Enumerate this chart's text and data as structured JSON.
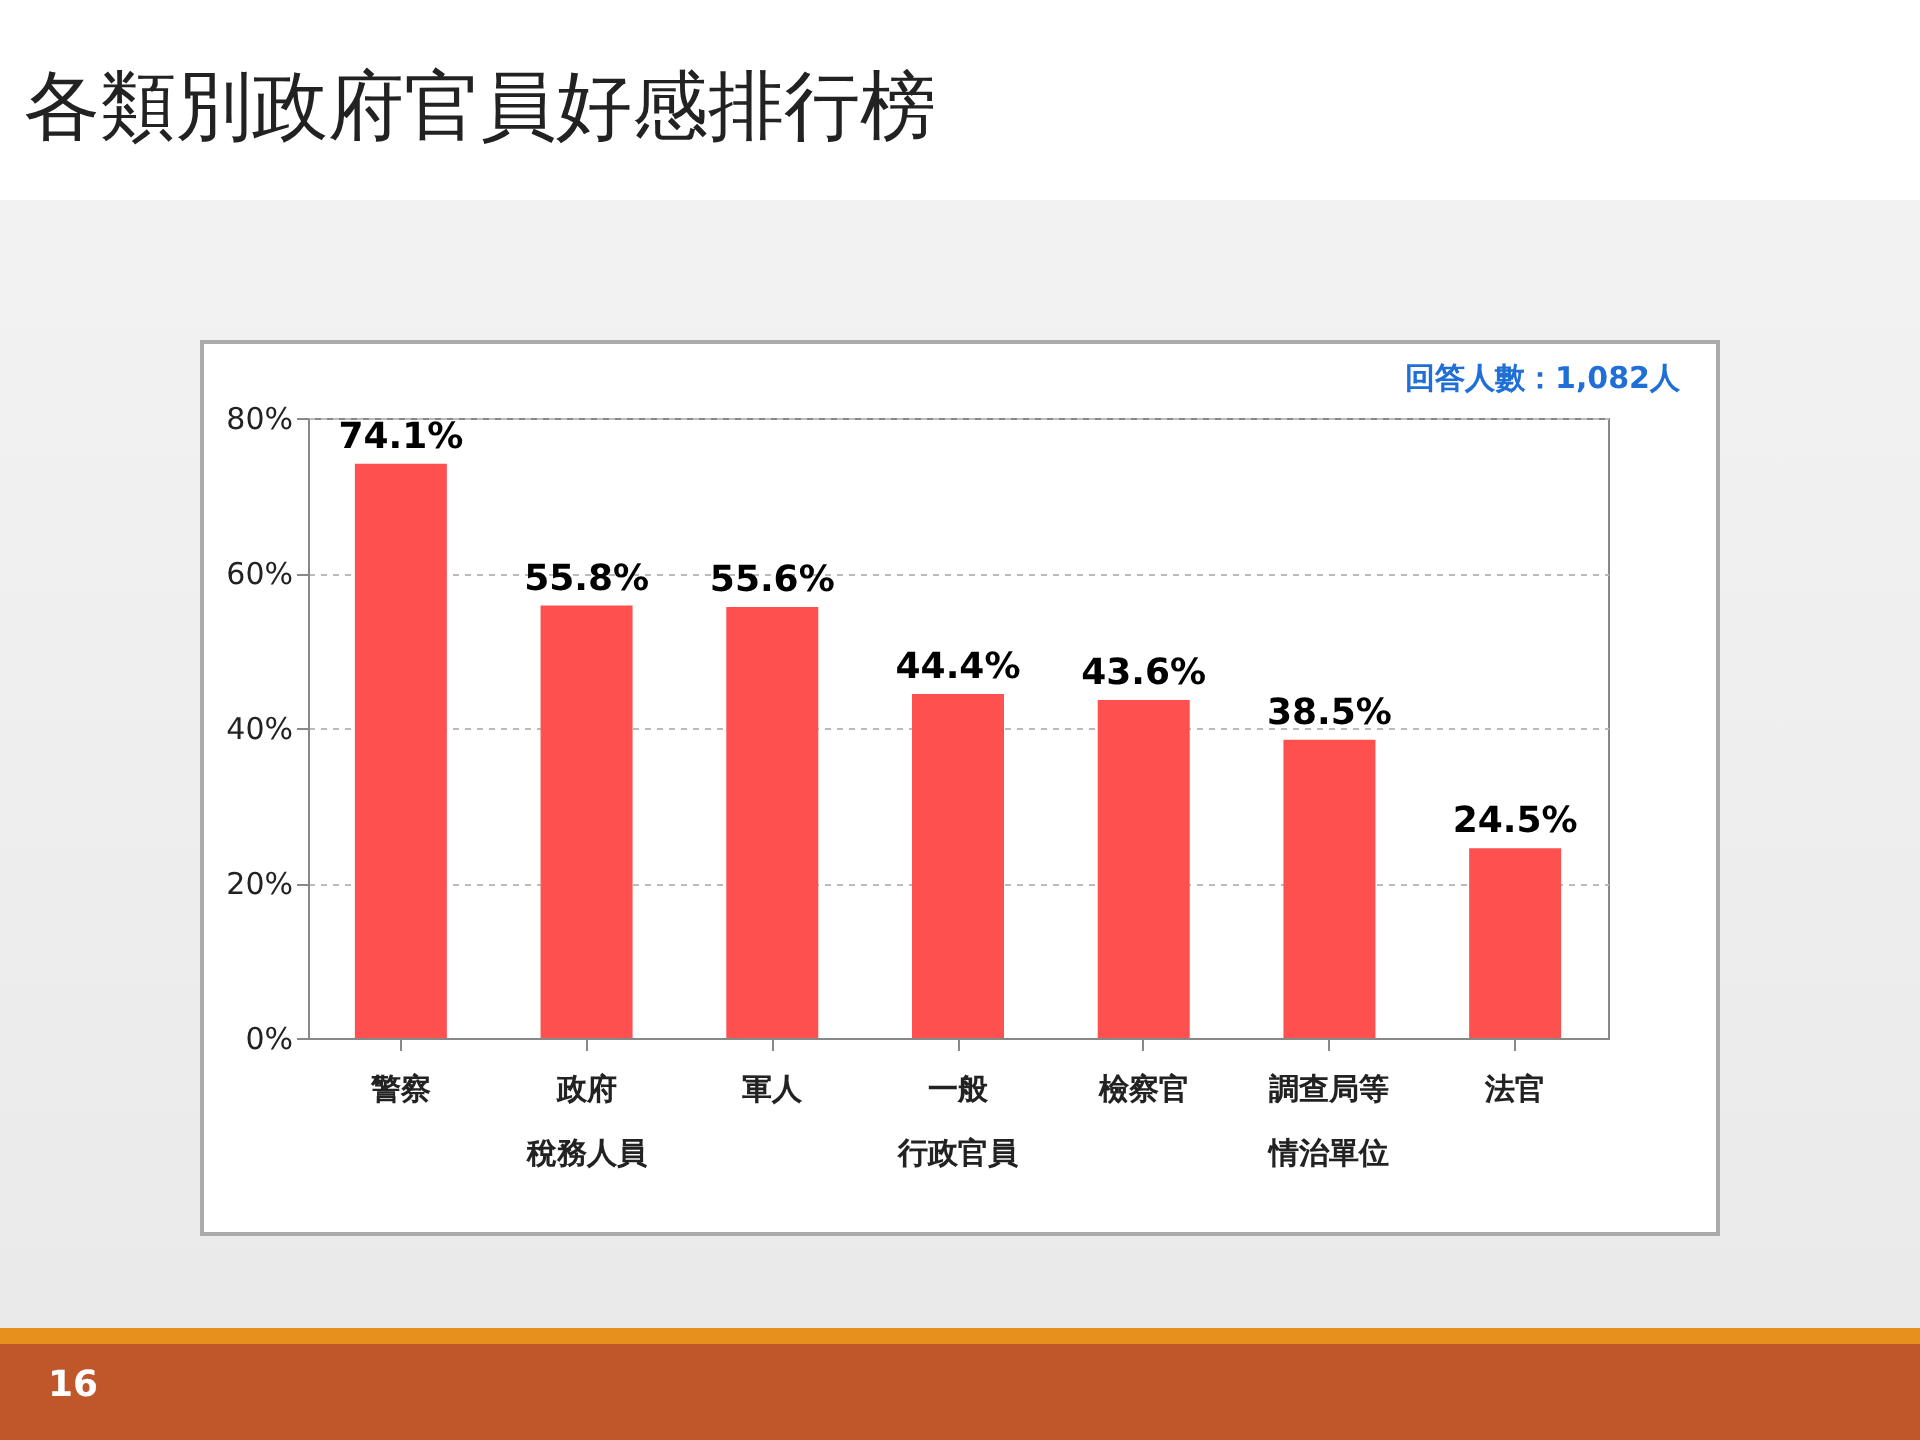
{
  "chart_data": {
    "type": "bar",
    "title": "各類別政府官員好感排行榜",
    "categories": [
      "警察",
      "政府稅務人員",
      "軍人",
      "一般行政官員",
      "檢察官",
      "調查局等情治單位",
      "法官"
    ],
    "values": [
      74.1,
      55.8,
      55.6,
      44.4,
      43.6,
      38.5,
      24.5
    ],
    "value_labels": [
      "74.1%",
      "55.8%",
      "55.6%",
      "44.4%",
      "43.6%",
      "38.5%",
      "24.5%"
    ],
    "color": "#ff5050",
    "ylim": [
      0,
      80
    ],
    "yticks": [
      {
        "value": 0,
        "label": "0%"
      },
      {
        "value": 20,
        "label": "20%"
      },
      {
        "value": 40,
        "label": "40%"
      },
      {
        "value": 60,
        "label": "60%"
      },
      {
        "value": 80,
        "label": "80%"
      }
    ],
    "grid": "y",
    "annotations": [
      "回答人數：1,082人",
      "16"
    ]
  }
}
